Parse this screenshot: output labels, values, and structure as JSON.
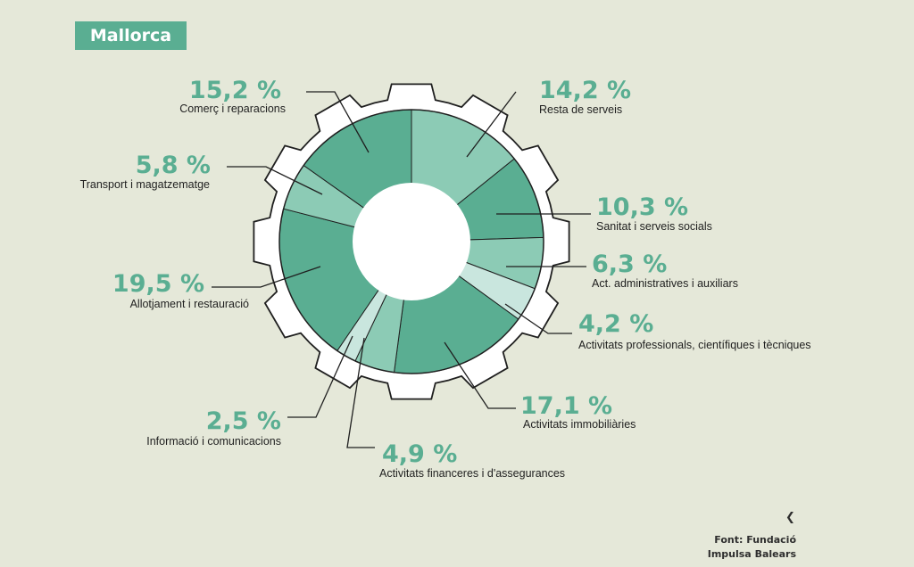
{
  "header": {
    "title": "Mallorca"
  },
  "chart_data": {
    "type": "pie",
    "style": "donut inside gear outline",
    "slices": [
      {
        "value": 14.2,
        "display": "14,2 %",
        "label": "Resta de serveis",
        "color": "#8ccbb5"
      },
      {
        "value": 10.3,
        "display": "10,3 %",
        "label": "Sanitat i serveis socials",
        "color": "#5aae92"
      },
      {
        "value": 6.3,
        "display": "6,3 %",
        "label": "Act. administratives i auxiliars",
        "color": "#8ccbb5"
      },
      {
        "value": 4.2,
        "display": "4,2 %",
        "label": "Activitats professionals, científiques i tècniques",
        "color": "#c9e6de"
      },
      {
        "value": 17.1,
        "display": "17,1 %",
        "label": "Activitats immobiliàries",
        "color": "#5aae92"
      },
      {
        "value": 4.9,
        "display": "4,9 %",
        "label": "Activitats financeres i d'assegurances",
        "color": "#8ccbb5"
      },
      {
        "value": 2.5,
        "display": "2,5 %",
        "label": "Informació i comunicacions",
        "color": "#c9e6de"
      },
      {
        "value": 19.5,
        "display": "19,5 %",
        "label": "Allotjament i restauració",
        "color": "#5aae92"
      },
      {
        "value": 5.8,
        "display": "5,8 %",
        "label": "Transport i magatzematge",
        "color": "#8ccbb5"
      },
      {
        "value": 15.2,
        "display": "15,2 %",
        "label": "Comerç i reparacions",
        "color": "#5aae92"
      }
    ]
  },
  "source": {
    "line1": "Font: Fundació",
    "line2": "Impulsa Balears",
    "nav_icon": "chevron-left-icon"
  }
}
